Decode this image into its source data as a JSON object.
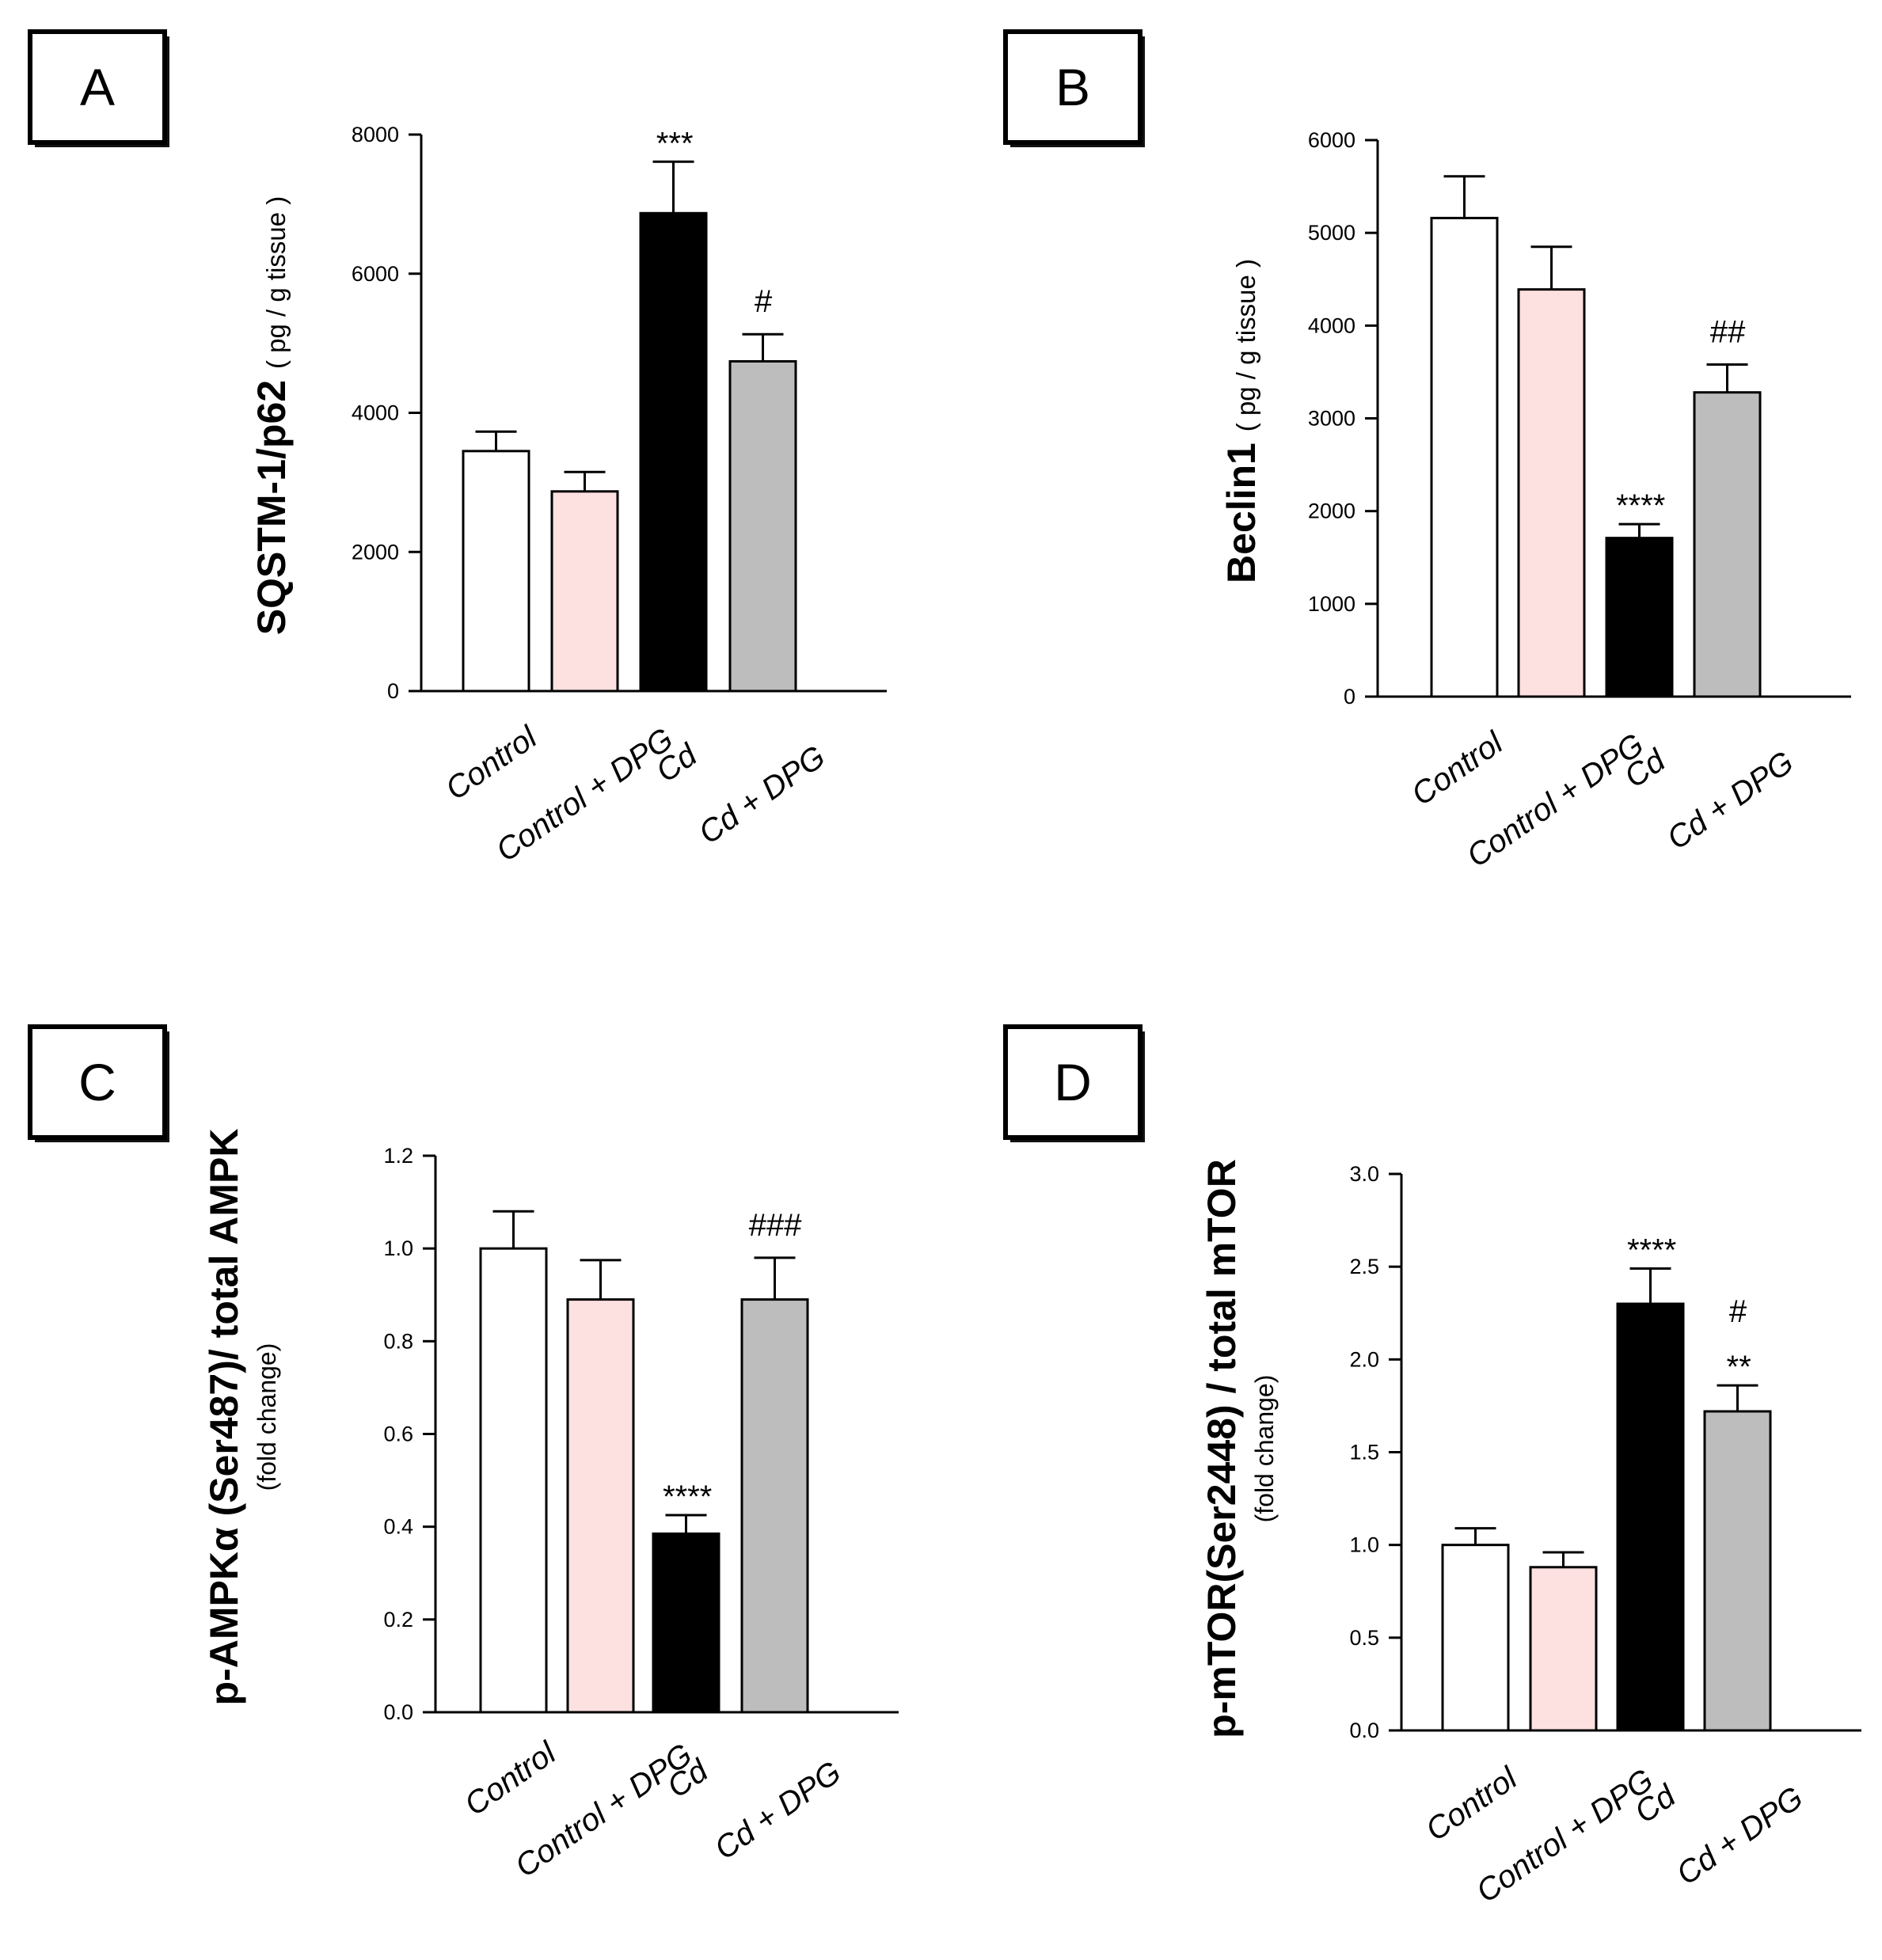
{
  "colors": {
    "bar_fills": [
      "#ffffff",
      "#fde0e0",
      "#000000",
      "#bdbdbd"
    ],
    "stroke": "#000000"
  },
  "chart_data": [
    {
      "panel": "A",
      "type": "bar",
      "categories": [
        "Control",
        "Control + DPG",
        "Cd",
        "Cd + DPG"
      ],
      "values": [
        3450,
        2870,
        6870,
        4740
      ],
      "errors": [
        280,
        280,
        740,
        390
      ],
      "annotations": [
        "",
        "",
        "***",
        "#"
      ],
      "ylabel_main": "SQSTM-1/p62",
      "ylabel_sub": "( pg / g tissue )",
      "ylabel_small": "",
      "yticks": [
        "0",
        "2000",
        "4000",
        "6000",
        "8000"
      ],
      "ylim": [
        0,
        8000
      ]
    },
    {
      "panel": "B",
      "type": "bar",
      "categories": [
        "Control",
        "Control + DPG",
        "Cd",
        "Cd + DPG"
      ],
      "values": [
        5160,
        4390,
        1710,
        3280
      ],
      "errors": [
        450,
        460,
        150,
        300
      ],
      "annotations": [
        "",
        "",
        "****",
        "##"
      ],
      "ylabel_main": "Beclin1",
      "ylabel_sub": "( pg / g tissue )",
      "ylabel_small": "",
      "yticks": [
        "0",
        "1000",
        "2000",
        "3000",
        "4000",
        "5000",
        "6000"
      ],
      "ylim": [
        0,
        6000
      ]
    },
    {
      "panel": "C",
      "type": "bar",
      "categories": [
        "Control",
        "Control + DPG",
        "Cd",
        "Cd + DPG"
      ],
      "values": [
        1.0,
        0.89,
        0.385,
        0.89
      ],
      "errors": [
        0.08,
        0.085,
        0.04,
        0.09
      ],
      "annotations": [
        "",
        "",
        "****",
        "###"
      ],
      "ylabel_main": "p-AMPKα (Ser487)/ total AMPK",
      "ylabel_sub": "",
      "ylabel_small": "(fold change)",
      "yticks": [
        "0.0",
        "0.2",
        "0.4",
        "0.6",
        "0.8",
        "1.0",
        "1.2"
      ],
      "ylim": [
        0,
        1.2
      ]
    },
    {
      "panel": "D",
      "type": "bar",
      "categories": [
        "Control",
        "Control + DPG",
        "Cd",
        "Cd + DPG"
      ],
      "values": [
        1.0,
        0.88,
        2.3,
        1.72
      ],
      "errors": [
        0.09,
        0.08,
        0.19,
        0.14
      ],
      "annotations": [
        "",
        "",
        "****",
        "#\n**"
      ],
      "ylabel_main": "p-mTOR(Ser2448) / total mTOR",
      "ylabel_sub": "",
      "ylabel_small": "(fold change)",
      "yticks": [
        "0.0",
        "0.5",
        "1.0",
        "1.5",
        "2.0",
        "2.5",
        "3.0"
      ],
      "ylim": [
        0,
        3.0
      ]
    }
  ]
}
